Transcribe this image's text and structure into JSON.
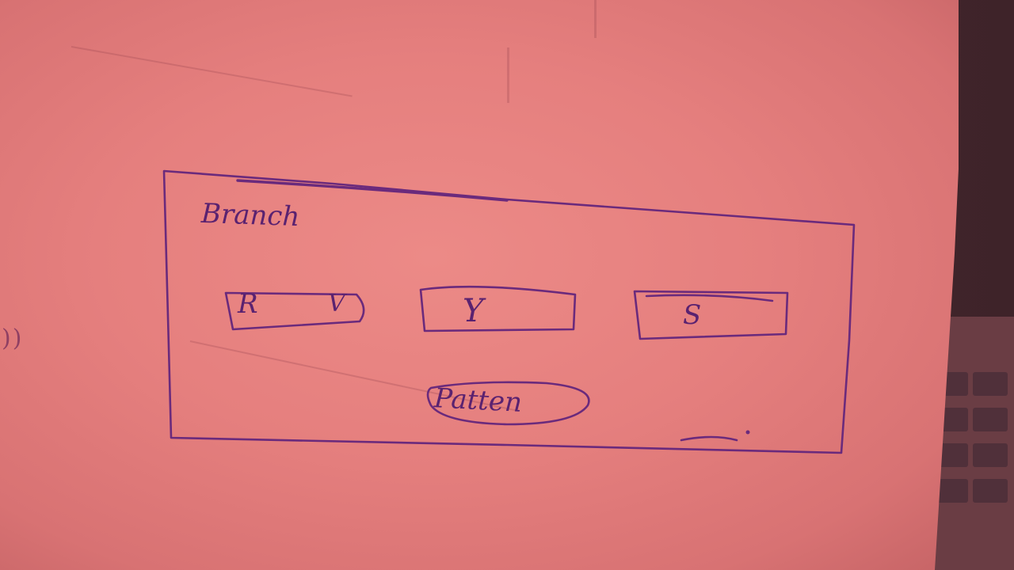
{
  "sketch": {
    "panel": {
      "title": "Branch"
    },
    "fields": [
      {
        "label": "R",
        "extra": "V"
      },
      {
        "label": "Y"
      },
      {
        "label": "S"
      }
    ],
    "button": {
      "label": "Patten"
    },
    "margin_note": "))"
  },
  "colors": {
    "paper": "#e57f7e",
    "ink": "#6a2a7c",
    "background": "#3e2329"
  }
}
